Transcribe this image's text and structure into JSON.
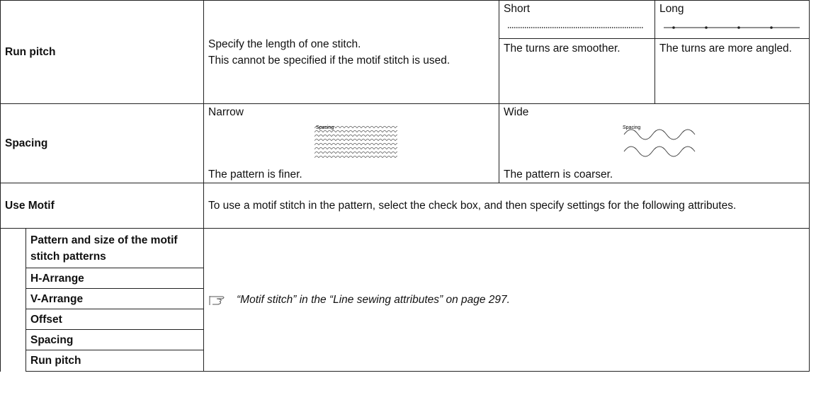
{
  "table": {
    "rows": [
      {
        "label": "Run pitch",
        "description": [
          "Specify the length of one stitch.",
          "This cannot be specified if the motif stitch is used."
        ],
        "short": {
          "title": "Short",
          "note": "The turns are smoother."
        },
        "long": {
          "title": "Long",
          "note": "The turns are more angled."
        }
      },
      {
        "label": "Spacing",
        "narrow": {
          "title": "Narrow",
          "image_label": "Spacing",
          "note": "The pattern is finer."
        },
        "wide": {
          "title": "Wide",
          "image_label": "Spacing",
          "note": "The pattern is coarser."
        }
      },
      {
        "label": "Use Motif",
        "description": "To use a motif stitch in the pattern, select the check box, and then specify settings for the following attributes.",
        "attributes": [
          "Pattern and size of the motif stitch patterns",
          "H-Arrange",
          "V-Arrange",
          "Offset",
          "Spacing",
          "Run pitch"
        ],
        "reference": "“Motif stitch” in the “Line sewing attributes” on page 297."
      }
    ]
  }
}
